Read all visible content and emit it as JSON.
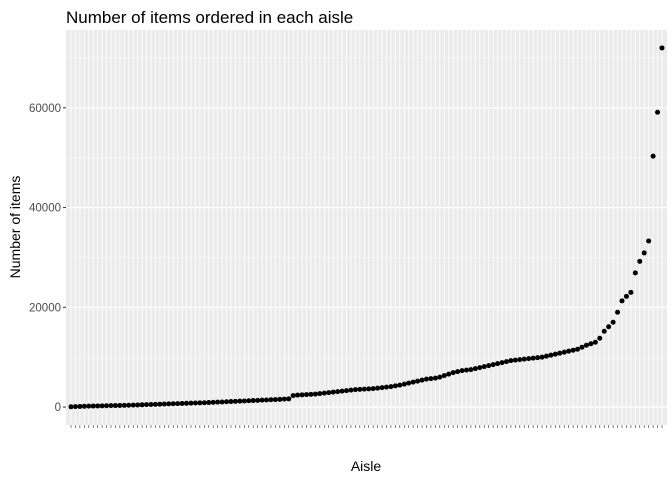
{
  "chart_data": {
    "type": "scatter",
    "title": "Number of items ordered in each aisle",
    "xlabel": "Aisle",
    "ylabel": "Number of items",
    "x_tick_labels_legible": false,
    "ylim": [
      -3600,
      75600
    ],
    "yticks": [
      0,
      20000,
      40000,
      60000
    ],
    "ytick_labels": [
      "0",
      "20000",
      "40000",
      "60000"
    ],
    "grid": true,
    "legend": "none",
    "n_points": 134,
    "values": [
      50,
      90,
      120,
      150,
      180,
      200,
      220,
      240,
      260,
      280,
      300,
      320,
      340,
      360,
      390,
      420,
      450,
      480,
      510,
      540,
      570,
      600,
      630,
      660,
      690,
      720,
      750,
      780,
      810,
      840,
      870,
      900,
      940,
      980,
      1020,
      1060,
      1100,
      1140,
      1180,
      1220,
      1260,
      1300,
      1340,
      1380,
      1420,
      1460,
      1500,
      1550,
      1600,
      1650,
      2300,
      2400,
      2450,
      2500,
      2550,
      2600,
      2700,
      2800,
      2900,
      3000,
      3100,
      3200,
      3300,
      3400,
      3500,
      3550,
      3600,
      3650,
      3700,
      3800,
      3900,
      4000,
      4100,
      4250,
      4400,
      4600,
      4800,
      5000,
      5200,
      5400,
      5600,
      5700,
      5800,
      6000,
      6300,
      6600,
      6900,
      7100,
      7300,
      7400,
      7500,
      7700,
      7900,
      8100,
      8300,
      8500,
      8700,
      8900,
      9100,
      9300,
      9400,
      9500,
      9600,
      9700,
      9800,
      9900,
      10000,
      10200,
      10400,
      10600,
      10800,
      11000,
      11200,
      11400,
      11600,
      12000,
      12400,
      12700,
      13000,
      13800,
      15200,
      16100,
      17000,
      19000,
      21300,
      22200,
      23000,
      26900,
      29200,
      30900,
      33300,
      50300,
      59100,
      72000
    ],
    "colors": {
      "panel": "#ebebeb",
      "grid_major": "#ffffff",
      "point": "#000000",
      "tick_text": "#4d4d4d"
    }
  }
}
